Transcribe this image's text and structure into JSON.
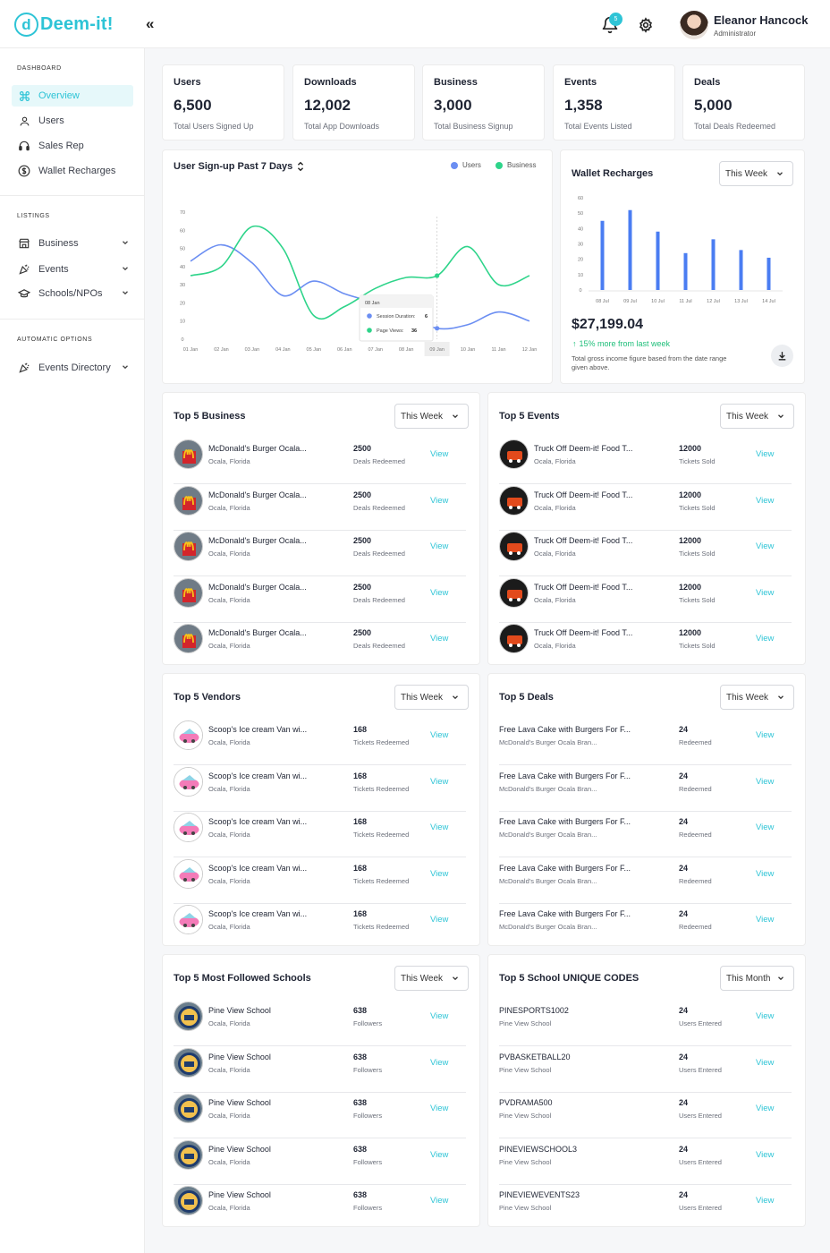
{
  "app": {
    "logo_letter": "d",
    "logo_text": "Deem-it!",
    "collapse_glyph": "«"
  },
  "header": {
    "notifications": "5",
    "user_name": "Eleanor Hancock",
    "user_role": "Administrator"
  },
  "sidebar": {
    "sections": [
      {
        "label": "DASHBOARD",
        "items": [
          {
            "label": "Overview",
            "icon": "command-icon",
            "active": true
          },
          {
            "label": "Users",
            "icon": "user-icon"
          },
          {
            "label": "Sales Rep",
            "icon": "headset-icon"
          },
          {
            "label": "Wallet Recharges",
            "icon": "dollar-circle-icon"
          }
        ]
      },
      {
        "label": "LISTINGS",
        "items": [
          {
            "label": "Business",
            "icon": "store-icon",
            "chevron": true
          },
          {
            "label": "Events",
            "icon": "party-popper-icon",
            "chevron": true
          },
          {
            "label": "Schools/NPOs",
            "icon": "graduation-cap-icon",
            "chevron": true
          }
        ]
      },
      {
        "label": "AUTOMATIC OPTIONS",
        "items": [
          {
            "label": "Events Directory",
            "icon": "party-popper-icon",
            "chevron": true
          }
        ]
      }
    ]
  },
  "stats": [
    {
      "title": "Users",
      "value": "6,500",
      "sub": "Total Users Signed Up"
    },
    {
      "title": "Downloads",
      "value": "12,002",
      "sub": "Total App Downloads"
    },
    {
      "title": "Business",
      "value": "3,000",
      "sub": "Total Business Signup"
    },
    {
      "title": "Events",
      "value": "1,358",
      "sub": "Total Events Listed"
    },
    {
      "title": "Deals",
      "value": "5,000",
      "sub": "Total Deals Redeemed"
    }
  ],
  "signup_chart": {
    "title": "User Sign-up Past 7 Days",
    "legend": [
      "Users",
      "Business"
    ],
    "colors": {
      "users": "#6b8ef2",
      "business": "#2ed48a"
    },
    "tooltip": {
      "date": "08 Jan",
      "line1_label": "Session Duration:",
      "line1_value": "6",
      "line2_label": "Page Views:",
      "line2_value": "36"
    }
  },
  "wallet": {
    "title": "Wallet Recharges",
    "period": "This Week",
    "amount": "$27,199.04",
    "change": "15% more from last week",
    "note": "Total gross income figure based from the date range given above.",
    "bar_color": "#4a7df2"
  },
  "chart_data": [
    {
      "type": "line",
      "title": "User Sign-up Past 7 Days",
      "x": [
        "01 Jan",
        "02 Jan",
        "03 Jan",
        "04 Jan",
        "05 Jan",
        "06 Jan",
        "07 Jan",
        "08 Jan",
        "09 Jan",
        "10 Jan",
        "11 Jan",
        "12 Jan"
      ],
      "ylim": [
        0,
        70
      ],
      "yticks": [
        0,
        10,
        20,
        30,
        40,
        50,
        60,
        70
      ],
      "series": [
        {
          "name": "Users",
          "values": [
            43,
            52,
            42,
            24,
            32,
            25,
            20,
            14,
            6,
            8,
            15,
            10
          ]
        },
        {
          "name": "Business",
          "values": [
            35,
            40,
            62,
            50,
            13,
            18,
            28,
            34,
            35,
            51,
            30,
            35
          ]
        }
      ],
      "legend": "top-right",
      "grid": false
    },
    {
      "type": "bar",
      "title": "Wallet Recharges",
      "categories": [
        "08 Jul",
        "09 Jul",
        "10 Jul",
        "11 Jul",
        "12 Jul",
        "13 Jul",
        "14 Jul"
      ],
      "values": [
        45,
        52,
        38,
        24,
        33,
        26,
        21
      ],
      "ylim": [
        0,
        60
      ],
      "yticks": [
        0,
        10,
        20,
        30,
        40,
        50,
        60
      ],
      "grid": false
    }
  ],
  "top_business": {
    "title": "Top 5 Business",
    "period": "This Week",
    "rows": [
      {
        "name": "McDonald's Burger Ocala...",
        "loc": "Ocala, Florida",
        "value": "2500",
        "sub": "Deals Redeemed",
        "action": "View"
      },
      {
        "name": "McDonald's Burger Ocala...",
        "loc": "Ocala, Florida",
        "value": "2500",
        "sub": "Deals Redeemed",
        "action": "View"
      },
      {
        "name": "McDonald's Burger Ocala...",
        "loc": "Ocala, Florida",
        "value": "2500",
        "sub": "Deals Redeemed",
        "action": "View"
      },
      {
        "name": "McDonald's Burger Ocala...",
        "loc": "Ocala, Florida",
        "value": "2500",
        "sub": "Deals Redeemed",
        "action": "View"
      },
      {
        "name": "McDonald's Burger Ocala...",
        "loc": "Ocala, Florida",
        "value": "2500",
        "sub": "Deals Redeemed",
        "action": "View"
      }
    ]
  },
  "top_events": {
    "title": "Top 5 Events",
    "period": "This Week",
    "rows": [
      {
        "name": "Truck Off Deem-it! Food T...",
        "loc": "Ocala, Florida",
        "value": "12000",
        "sub": "Tickets Sold",
        "action": "View"
      },
      {
        "name": "Truck Off Deem-it! Food T...",
        "loc": "Ocala, Florida",
        "value": "12000",
        "sub": "Tickets Sold",
        "action": "View"
      },
      {
        "name": "Truck Off Deem-it! Food T...",
        "loc": "Ocala, Florida",
        "value": "12000",
        "sub": "Tickets Sold",
        "action": "View"
      },
      {
        "name": "Truck Off Deem-it! Food T...",
        "loc": "Ocala, Florida",
        "value": "12000",
        "sub": "Tickets Sold",
        "action": "View"
      },
      {
        "name": "Truck Off Deem-it! Food T...",
        "loc": "Ocala, Florida",
        "value": "12000",
        "sub": "Tickets Sold",
        "action": "View"
      }
    ]
  },
  "top_vendors": {
    "title": "Top 5 Vendors",
    "period": "This Week",
    "rows": [
      {
        "name": "Scoop's Ice cream Van wi...",
        "loc": "Ocala, Florida",
        "value": "168",
        "sub": "Tickets Redeemed",
        "action": "View"
      },
      {
        "name": "Scoop's Ice cream Van wi...",
        "loc": "Ocala, Florida",
        "value": "168",
        "sub": "Tickets Redeemed",
        "action": "View"
      },
      {
        "name": "Scoop's Ice cream Van wi...",
        "loc": "Ocala, Florida",
        "value": "168",
        "sub": "Tickets Redeemed",
        "action": "View"
      },
      {
        "name": "Scoop's Ice cream Van wi...",
        "loc": "Ocala, Florida",
        "value": "168",
        "sub": "Tickets Redeemed",
        "action": "View"
      },
      {
        "name": "Scoop's Ice cream Van wi...",
        "loc": "Ocala, Florida",
        "value": "168",
        "sub": "Tickets Redeemed",
        "action": "View"
      }
    ]
  },
  "top_deals": {
    "title": "Top 5 Deals",
    "period": "This Week",
    "rows": [
      {
        "name": "Free Lava Cake with Burgers For F...",
        "loc": "McDonald's Burger Ocala Bran...",
        "value": "24",
        "sub": "Redeemed",
        "action": "View"
      },
      {
        "name": "Free Lava Cake with Burgers For F...",
        "loc": "McDonald's Burger Ocala Bran...",
        "value": "24",
        "sub": "Redeemed",
        "action": "View"
      },
      {
        "name": "Free Lava Cake with Burgers For F...",
        "loc": "McDonald's Burger Ocala Bran...",
        "value": "24",
        "sub": "Redeemed",
        "action": "View"
      },
      {
        "name": "Free Lava Cake with Burgers For F...",
        "loc": "McDonald's Burger Ocala Bran...",
        "value": "24",
        "sub": "Redeemed",
        "action": "View"
      },
      {
        "name": "Free Lava Cake with Burgers For F...",
        "loc": "McDonald's Burger Ocala Bran...",
        "value": "24",
        "sub": "Redeemed",
        "action": "View"
      }
    ]
  },
  "top_schools": {
    "title": "Top 5 Most Followed Schools",
    "period": "This Week",
    "rows": [
      {
        "name": "Pine View School",
        "loc": "Ocala, Florida",
        "value": "638",
        "sub": "Followers",
        "action": "View"
      },
      {
        "name": "Pine View School",
        "loc": "Ocala, Florida",
        "value": "638",
        "sub": "Followers",
        "action": "View"
      },
      {
        "name": "Pine View School",
        "loc": "Ocala, Florida",
        "value": "638",
        "sub": "Followers",
        "action": "View"
      },
      {
        "name": "Pine View School",
        "loc": "Ocala, Florida",
        "value": "638",
        "sub": "Followers",
        "action": "View"
      },
      {
        "name": "Pine View School",
        "loc": "Ocala, Florida",
        "value": "638",
        "sub": "Followers",
        "action": "View"
      }
    ]
  },
  "top_codes": {
    "title": "Top 5 School  UNIQUE CODES",
    "period": "This Month",
    "rows": [
      {
        "name": "PINESPORTS1002",
        "loc": "Pine View School",
        "value": "24",
        "sub": "Users Entered",
        "action": "View"
      },
      {
        "name": "PVBASKETBALL20",
        "loc": "Pine View School",
        "value": "24",
        "sub": "Users Entered",
        "action": "View"
      },
      {
        "name": "PVDRAMA500",
        "loc": "Pine View School",
        "value": "24",
        "sub": "Users Entered",
        "action": "View"
      },
      {
        "name": "PINEVIEWSCHOOL3",
        "loc": "Pine View School",
        "value": "24",
        "sub": "Users Entered",
        "action": "View"
      },
      {
        "name": "PINEVIEWEVENTS23",
        "loc": "Pine View School",
        "value": "24",
        "sub": "Users Entered",
        "action": "View"
      }
    ]
  }
}
